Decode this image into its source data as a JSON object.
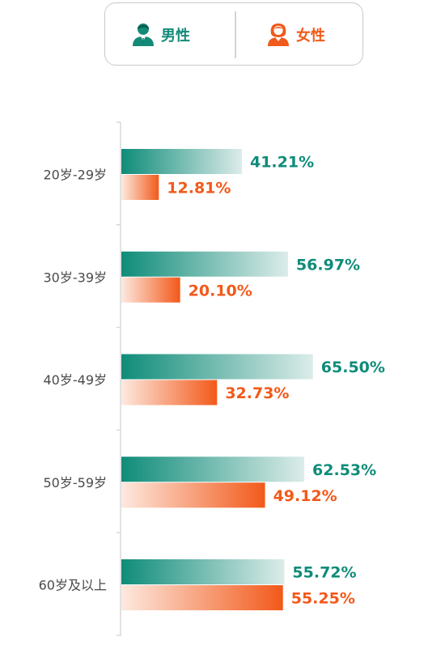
{
  "legend": {
    "male_label": "男性",
    "female_label": "女性",
    "male_icon": "male-user-icon",
    "female_icon": "female-user-icon"
  },
  "colors": {
    "male": "#0f8c79",
    "male_light": "#dcece9",
    "female": "#f2591a",
    "female_light": "#fde9df",
    "axis": "#d8d8d8",
    "category_text": "#4a4a4a"
  },
  "chart_data": {
    "type": "bar",
    "orientation": "horizontal",
    "categories": [
      "20岁-29岁",
      "30岁-39岁",
      "40岁-49岁",
      "50岁-59岁",
      "60岁及以上"
    ],
    "series": [
      {
        "name": "男性",
        "values": [
          41.21,
          56.97,
          65.5,
          62.53,
          55.72
        ],
        "labels": [
          "41.21%",
          "56.97%",
          "65.50%",
          "62.53%",
          "55.72%"
        ]
      },
      {
        "name": "女性",
        "values": [
          12.81,
          20.1,
          32.73,
          49.12,
          55.25
        ],
        "labels": [
          "12.81%",
          "20.10%",
          "32.73%",
          "49.12%",
          "55.25%"
        ]
      }
    ],
    "xlim": [
      0,
      100
    ],
    "grid": false,
    "legend_position": "top"
  }
}
